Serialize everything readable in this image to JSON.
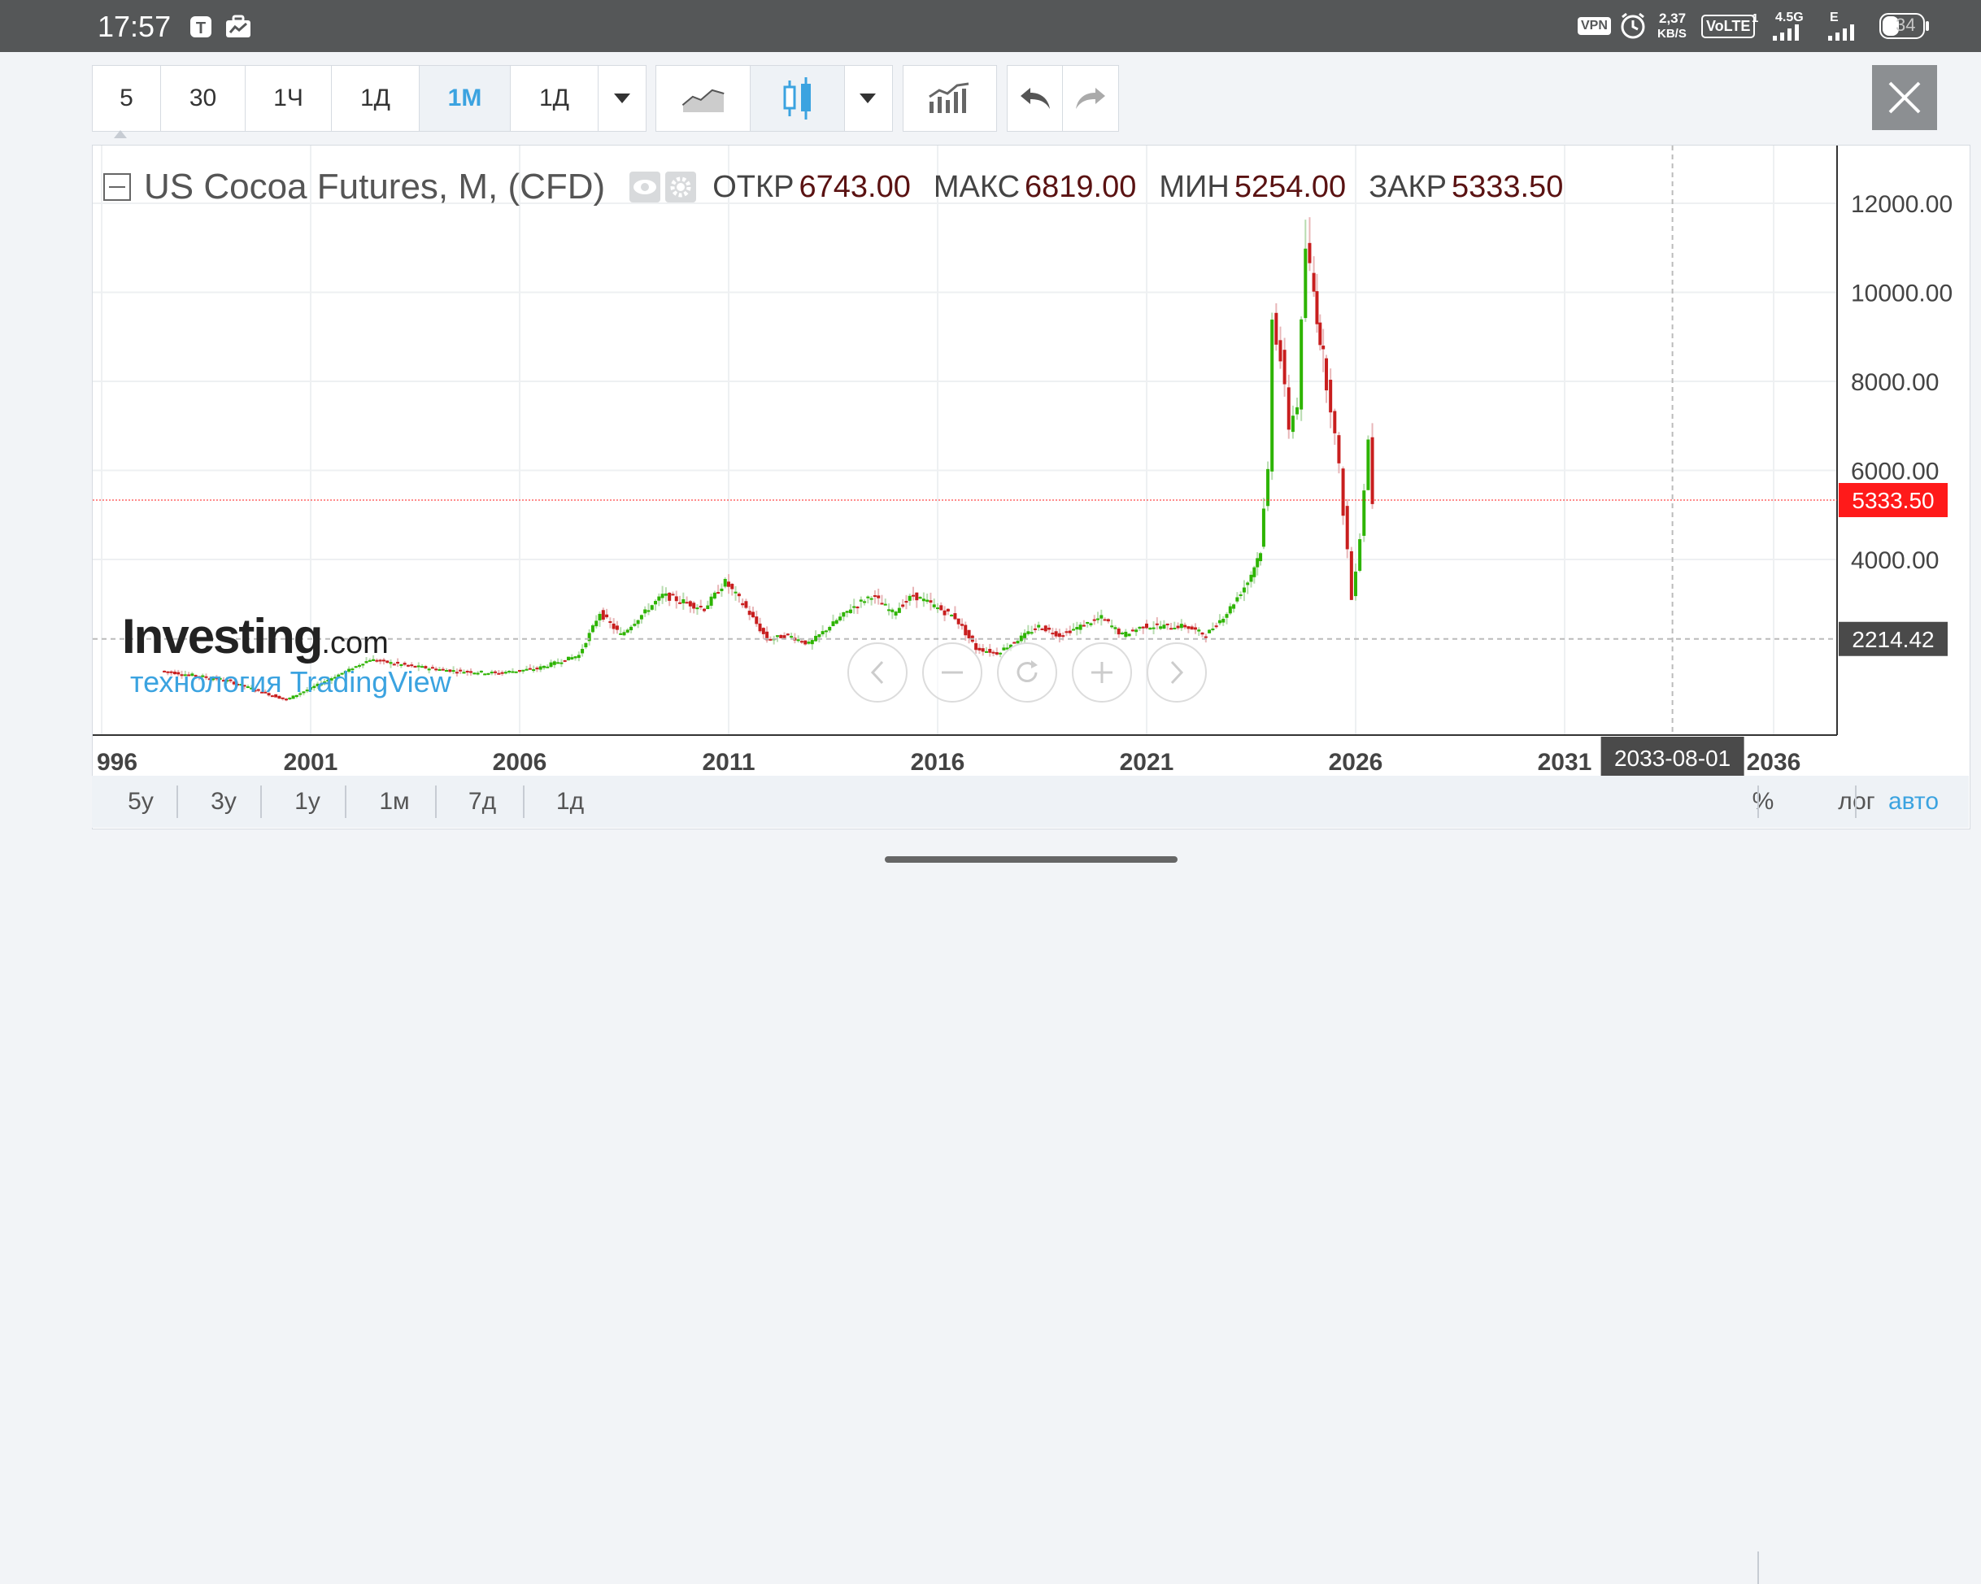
{
  "status_bar": {
    "time": "17:57",
    "vpn": "VPN",
    "net_speed": "2,37",
    "net_unit": "KB/S",
    "volte": "VoLTE",
    "sim1": "1",
    "lte": "4.5G",
    "e_label": "E",
    "battery": "34"
  },
  "toolbar": {
    "intervals": [
      "5",
      "30",
      "1Ч",
      "1Д",
      "1М",
      "1Д"
    ],
    "active_interval": "1М"
  },
  "chart_legend": {
    "symbol": "US Cocoa Futures, M, (CFD)",
    "open_label": "ОТКР",
    "open_value": "6743.00",
    "high_label": "МАКС",
    "high_value": "6819.00",
    "low_label": "МИН",
    "low_value": "5254.00",
    "close_label": "ЗАКР",
    "close_value": "5333.50"
  },
  "watermark": {
    "brand": "Investing",
    "brand_suffix": ".com",
    "sub": "технология TradingView"
  },
  "price_tags": {
    "last": "5333.50",
    "crosshair": "2214.42",
    "crosshair_date": "2033-08-01"
  },
  "periods": [
    "5y",
    "3y",
    "1y",
    "1м",
    "7д",
    "1д"
  ],
  "scale_options": {
    "percent": "%",
    "log": "лог",
    "auto": "авто"
  },
  "colors": {
    "up": "#2db400",
    "down": "#c81e1e",
    "accent": "#3ba3e0",
    "last_price": "#ff1a1a"
  },
  "chart_data": {
    "type": "candlestick",
    "title": "US Cocoa Futures, M, (CFD)",
    "x_ticks": [
      "996",
      "2001",
      "2006",
      "2011",
      "2016",
      "2021",
      "2026",
      "2031",
      "2036"
    ],
    "y_ticks": [
      4000,
      6000,
      8000,
      10000,
      12000
    ],
    "ylim": [
      0,
      13000
    ],
    "last_price": 5333.5,
    "crosshair_price": 2214.42,
    "series": [
      {
        "year": 1997.5,
        "close": 1500
      },
      {
        "year": 1999.0,
        "close": 1300
      },
      {
        "year": 2000.5,
        "close": 850
      },
      {
        "year": 2002.5,
        "close": 1750
      },
      {
        "year": 2003.5,
        "close": 1600
      },
      {
        "year": 2004.5,
        "close": 1500
      },
      {
        "year": 2005.5,
        "close": 1450
      },
      {
        "year": 2006.5,
        "close": 1550
      },
      {
        "year": 2007.5,
        "close": 1850
      },
      {
        "year": 2008.0,
        "close": 2800
      },
      {
        "year": 2008.5,
        "close": 2300
      },
      {
        "year": 2009.5,
        "close": 3200
      },
      {
        "year": 2010.5,
        "close": 2900
      },
      {
        "year": 2011.0,
        "close": 3500
      },
      {
        "year": 2011.5,
        "close": 2900
      },
      {
        "year": 2012.0,
        "close": 2200
      },
      {
        "year": 2012.5,
        "close": 2300
      },
      {
        "year": 2013.0,
        "close": 2100
      },
      {
        "year": 2014.0,
        "close": 2900
      },
      {
        "year": 2014.5,
        "close": 3200
      },
      {
        "year": 2015.0,
        "close": 2800
      },
      {
        "year": 2015.5,
        "close": 3200
      },
      {
        "year": 2016.5,
        "close": 2700
      },
      {
        "year": 2017.0,
        "close": 2000
      },
      {
        "year": 2017.5,
        "close": 1900
      },
      {
        "year": 2018.0,
        "close": 2200
      },
      {
        "year": 2018.5,
        "close": 2500
      },
      {
        "year": 2019.0,
        "close": 2300
      },
      {
        "year": 2020.0,
        "close": 2700
      },
      {
        "year": 2020.5,
        "close": 2300
      },
      {
        "year": 2021.0,
        "close": 2500
      },
      {
        "year": 2022.0,
        "close": 2500
      },
      {
        "year": 2022.5,
        "close": 2300
      },
      {
        "year": 2023.0,
        "close": 2800
      },
      {
        "year": 2023.5,
        "close": 3500
      },
      {
        "year": 2023.8,
        "close": 4200
      },
      {
        "year": 2024.0,
        "close": 6000
      },
      {
        "year": 2024.1,
        "close": 9500
      },
      {
        "year": 2024.3,
        "close": 8500
      },
      {
        "year": 2024.5,
        "close": 7000
      },
      {
        "year": 2024.7,
        "close": 7500
      },
      {
        "year": 2024.9,
        "close": 11000
      },
      {
        "year": 2025.0,
        "close": 10500
      },
      {
        "year": 2025.3,
        "close": 8500
      },
      {
        "year": 2025.5,
        "close": 7500
      },
      {
        "year": 2025.7,
        "close": 6000
      },
      {
        "year": 2025.9,
        "close": 4200
      },
      {
        "year": 2026.0,
        "close": 3100
      },
      {
        "year": 2026.2,
        "close": 4500
      },
      {
        "year": 2026.4,
        "close": 6700
      },
      {
        "year": 2026.5,
        "close": 5333.5
      }
    ]
  }
}
